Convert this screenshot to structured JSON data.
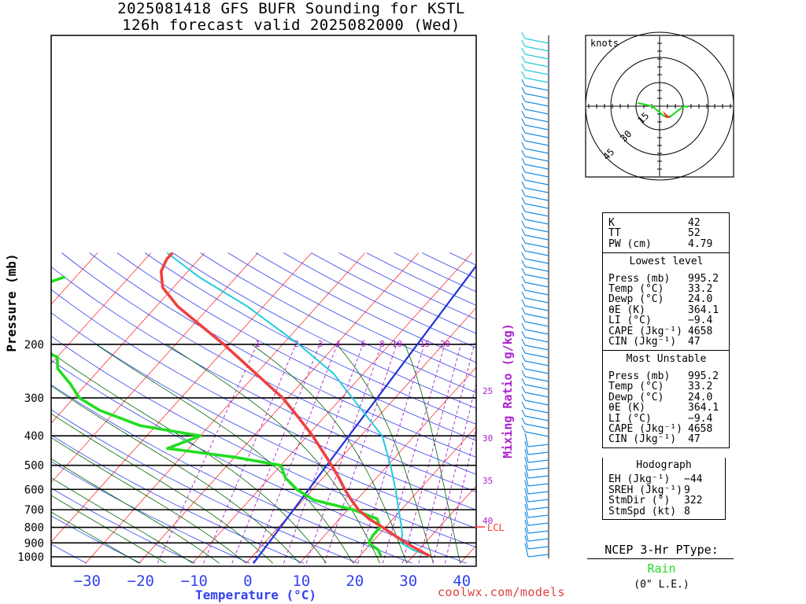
{
  "header": {
    "title_line1": "2025081418 GFS BUFR Sounding for KSTL",
    "title_line2": "126h forecast valid 2025082000 (Wed)"
  },
  "axes": {
    "ylabel": "Pressure (mb)",
    "xlabel": "Temperature (°C)",
    "mixing_ratio_label": "Mixing Ratio (g/kg)",
    "x_ticks": [
      "−30",
      "−20",
      "−10",
      "0",
      "10",
      "20",
      "30",
      "40"
    ],
    "y_ticks": [
      "200",
      "300",
      "400",
      "500",
      "600",
      "700",
      "800",
      "900",
      "1000"
    ],
    "mixing_ratio_values": [
      "1",
      "2",
      "3",
      "4",
      "6",
      "8",
      "10",
      "15",
      "20"
    ],
    "isotherm_side_labels": [
      "25",
      "30",
      "35",
      "40"
    ],
    "lcl_label": "LCL"
  },
  "credit": "coolwx.com/models",
  "hodograph": {
    "units_label": "knots",
    "ring_labels": [
      "15",
      "30",
      "45"
    ]
  },
  "indices": {
    "rows": [
      {
        "label": "K",
        "value": "42"
      },
      {
        "label": "TT",
        "value": "52"
      },
      {
        "label": "PW (cm)",
        "value": "4.79"
      }
    ]
  },
  "lowest_level": {
    "title": "Lowest level",
    "rows": [
      {
        "label": "Press (mb)",
        "value": "995.2"
      },
      {
        "label": "Temp (°C)",
        "value": "33.2"
      },
      {
        "label": "Dewp (°C)",
        "value": "24.0"
      },
      {
        "label": "θE (K)",
        "value": "364.1"
      },
      {
        "label": "LI (°C)",
        "value": "−9.4"
      },
      {
        "label": "CAPE (Jkg⁻¹)",
        "value": "4658"
      },
      {
        "label": "CIN (Jkg⁻¹)",
        "value": "47"
      }
    ]
  },
  "most_unstable": {
    "title": "Most Unstable",
    "rows": [
      {
        "label": "Press (mb)",
        "value": "995.2"
      },
      {
        "label": "Temp (°C)",
        "value": "33.2"
      },
      {
        "label": "Dewp (°C)",
        "value": "24.0"
      },
      {
        "label": "θE (K)",
        "value": "364.1"
      },
      {
        "label": "LI (°C)",
        "value": "−9.4"
      },
      {
        "label": "CAPE (Jkg⁻¹)",
        "value": "4658"
      },
      {
        "label": "CIN (Jkg⁻¹)",
        "value": "47"
      }
    ]
  },
  "hodo_stats": {
    "title": "Hodograph",
    "rows": [
      {
        "label": "EH (Jkg⁻¹)",
        "value": "−44"
      },
      {
        "label": "SREH (Jkg⁻¹)",
        "value": "9"
      },
      {
        "label": "StmDir (°)",
        "value": "322"
      },
      {
        "label": "StmSpd (kt)",
        "value": "8"
      }
    ]
  },
  "ptype": {
    "title": "NCEP 3-Hr PType:",
    "value": "Rain",
    "note": "(0\" L.E.)"
  },
  "colors": {
    "temperature": "#f04040",
    "dewpoint": "#22dd22",
    "parcel": "#22ccdd",
    "isotherm": "#ff3333",
    "dry_adiabat": "#3344ee",
    "moist_adiabat": "#006600",
    "mixing_ratio": "#aa22cc",
    "reference_line": "#2233dd",
    "barbs": "#1e8fe0",
    "xlabel": "#3344ee"
  },
  "chart_data": {
    "type": "line",
    "title": "2025081418 GFS BUFR Sounding for KSTL",
    "subtitle": "126h forecast valid 2025082000 (Wed)",
    "xlabel": "Temperature (°C)",
    "ylabel": "Pressure (mb)",
    "xlim": [
      -40,
      40
    ],
    "ylim": [
      1050,
      100
    ],
    "series": [
      {
        "name": "Temperature",
        "points": [
          [
            995,
            33.2
          ],
          [
            950,
            30.0
          ],
          [
            900,
            26.5
          ],
          [
            850,
            23.0
          ],
          [
            800,
            19.5
          ],
          [
            750,
            15.5
          ],
          [
            700,
            12.0
          ],
          [
            650,
            9.0
          ],
          [
            600,
            6.0
          ],
          [
            550,
            3.0
          ],
          [
            500,
            -0.5
          ],
          [
            450,
            -4.5
          ],
          [
            400,
            -9.0
          ],
          [
            350,
            -14.5
          ],
          [
            300,
            -21.0
          ],
          [
            250,
            -30.0
          ],
          [
            200,
            -41.0
          ],
          [
            175,
            -48.0
          ],
          [
            150,
            -56.0
          ],
          [
            130,
            -62.0
          ],
          [
            115,
            -65.0
          ],
          [
            105,
            -66.0
          ],
          [
            100,
            -66.0
          ]
        ]
      },
      {
        "name": "Dewpoint",
        "points": [
          [
            995,
            24.0
          ],
          [
            950,
            22.5
          ],
          [
            900,
            19.5
          ],
          [
            850,
            19.0
          ],
          [
            800,
            19.0
          ],
          [
            750,
            17.0
          ],
          [
            700,
            11.0
          ],
          [
            650,
            2.0
          ],
          [
            600,
            -3.0
          ],
          [
            550,
            -7.0
          ],
          [
            500,
            -10.0
          ],
          [
            470,
            -20.0
          ],
          [
            440,
            -34.0
          ],
          [
            400,
            -30.0
          ],
          [
            370,
            -43.0
          ],
          [
            330,
            -53.0
          ],
          [
            300,
            -59.0
          ],
          [
            270,
            -63.0
          ],
          [
            240,
            -68.0
          ],
          [
            220,
            -70.0
          ],
          [
            200,
            -78.0
          ],
          [
            175,
            -82.0
          ],
          [
            160,
            -88.0
          ],
          [
            140,
            -90.0
          ],
          [
            120,
            -82.0
          ]
        ]
      },
      {
        "name": "Parcel",
        "points": [
          [
            995,
            33.2
          ],
          [
            950,
            29.0
          ],
          [
            900,
            25.5
          ],
          [
            850,
            24.5
          ],
          [
            800,
            23.0
          ],
          [
            700,
            19.5
          ],
          [
            600,
            15.5
          ],
          [
            500,
            10.5
          ],
          [
            400,
            4.0
          ],
          [
            300,
            -8.0
          ],
          [
            250,
            -15.5
          ],
          [
            200,
            -27.0
          ],
          [
            150,
            -43.0
          ],
          [
            120,
            -57.0
          ],
          [
            100,
            -67.0
          ]
        ]
      }
    ],
    "mixing_ratio_lines_gkg": [
      1,
      2,
      3,
      4,
      6,
      8,
      10,
      15,
      20,
      25,
      30,
      35,
      40
    ]
  }
}
